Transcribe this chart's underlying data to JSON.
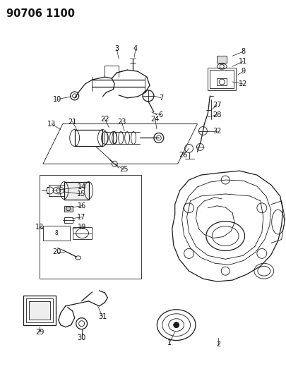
{
  "title_code": "90706 1100",
  "background": "#ffffff",
  "fig_width": 4.05,
  "fig_height": 5.33,
  "dpi": 100,
  "line_color": "#1a1a1a",
  "text_color": "#111111",
  "font_size": 7.0,
  "title_font_size": 10.5,
  "lw_thin": 0.6,
  "lw_med": 0.9,
  "lw_thick": 1.2
}
